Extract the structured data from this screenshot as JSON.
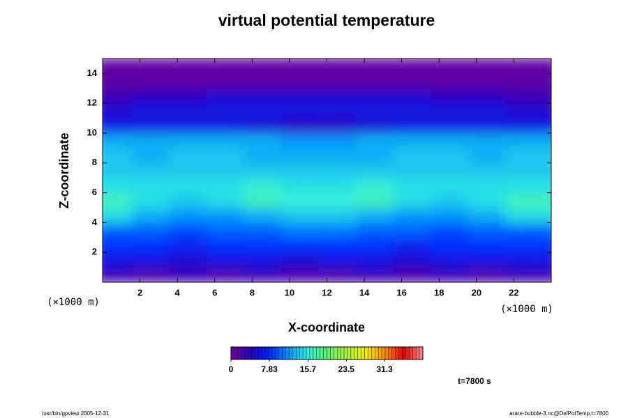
{
  "chart_data": {
    "type": "heatmap",
    "title": "virtual potential temperature",
    "x_label": "X-coordinate",
    "y_label": "Z-coordinate",
    "x_unit": "(×1000 m)",
    "y_unit": "(×1000 m)",
    "annotation": "t=7800 s",
    "x": [
      1,
      3,
      5,
      7,
      9,
      11,
      13,
      15,
      17,
      19,
      21,
      23
    ],
    "y": [
      0.5,
      1.5,
      2.5,
      3.5,
      4.5,
      5.5,
      6.5,
      7.5,
      8.5,
      9.5,
      10.5,
      11.5,
      12.5,
      13.5,
      14.5
    ],
    "values": [
      [
        3,
        2,
        3,
        2,
        3,
        2,
        2,
        3,
        2,
        3,
        2,
        3
      ],
      [
        6,
        6,
        5,
        6,
        6,
        5,
        6,
        6,
        5,
        6,
        6,
        6
      ],
      [
        8,
        8,
        7,
        8,
        8,
        8,
        8,
        8,
        7,
        8,
        8,
        8
      ],
      [
        10,
        10,
        9,
        10,
        10,
        11,
        11,
        10,
        10,
        9,
        10,
        10
      ],
      [
        15,
        13,
        12,
        12,
        13,
        14,
        14,
        13,
        12,
        12,
        13,
        15
      ],
      [
        17,
        15,
        14,
        15,
        17,
        16,
        16,
        17,
        15,
        14,
        15,
        17
      ],
      [
        15,
        15,
        15,
        15,
        16,
        15,
        15,
        16,
        15,
        15,
        15,
        15
      ],
      [
        14,
        14,
        14,
        14,
        14,
        14,
        14,
        14,
        14,
        14,
        14,
        14
      ],
      [
        14,
        13,
        14,
        14,
        13,
        13,
        13,
        13,
        14,
        14,
        13,
        14
      ],
      [
        13,
        13,
        13,
        13,
        13,
        12,
        12,
        13,
        13,
        13,
        13,
        13
      ],
      [
        6,
        6,
        6,
        6,
        5,
        4,
        4,
        5,
        6,
        6,
        6,
        6
      ],
      [
        5,
        6,
        6,
        6,
        6,
        6,
        6,
        6,
        6,
        6,
        6,
        5
      ],
      [
        3,
        4,
        4,
        5,
        5,
        5,
        5,
        5,
        5,
        4,
        4,
        3
      ],
      [
        1,
        1,
        1,
        1,
        1,
        1,
        1,
        1,
        1,
        1,
        1,
        1
      ],
      [
        1,
        1,
        1,
        1,
        1,
        1,
        1,
        1,
        1,
        1,
        1,
        1
      ]
    ],
    "xlim": [
      0,
      24
    ],
    "ylim": [
      0,
      15
    ],
    "xticks": [
      2,
      4,
      6,
      8,
      10,
      12,
      14,
      16,
      18,
      20,
      22
    ],
    "yticks": [
      2,
      4,
      6,
      8,
      10,
      12,
      14
    ],
    "clim": [
      0,
      39.1
    ],
    "cticks": [
      0,
      7.83,
      15.7,
      23.5,
      31.3
    ],
    "colormap": [
      "#70009a",
      "#2a00c0",
      "#0028ff",
      "#0090ff",
      "#30f0e0",
      "#60f070",
      "#a8f040",
      "#f0f000",
      "#ff9000",
      "#e80000",
      "#ff9090"
    ]
  },
  "footer": {
    "left": "/usr/bin/gpview 2005-12-31",
    "right": "arare-bubble-3.nc@DelPotTemp,t=7800"
  }
}
